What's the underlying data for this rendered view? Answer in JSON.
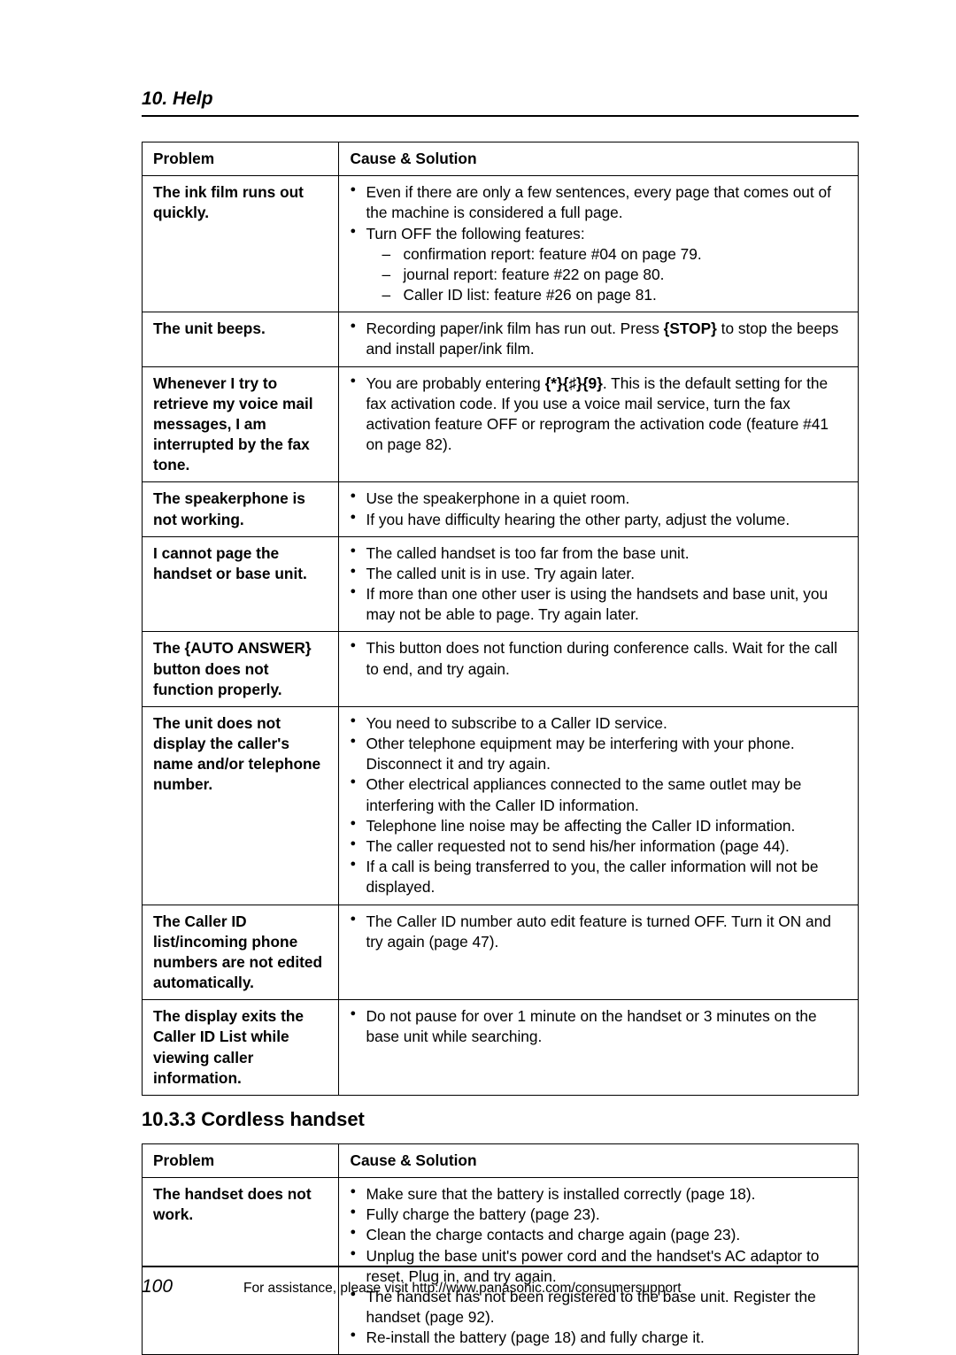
{
  "header": "10. Help",
  "table1": {
    "columns": [
      "Problem",
      "Cause & Solution"
    ],
    "rows": [
      {
        "problem": "The ink film runs out quickly.",
        "bullets": [
          "Even if there are only a few sentences, every page that comes out of the machine is considered a full page.",
          "Turn OFF the following features:"
        ],
        "dashes": [
          "confirmation report: feature #04 on page 79.",
          "journal report: feature #22 on page 80.",
          "Caller ID list: feature #26 on page 81."
        ]
      },
      {
        "problem": "The unit beeps.",
        "bullets_html": [
          "Recording paper/ink film has run out. Press <span class=\"btn\">{STOP}</span> to stop the beeps and install paper/ink film."
        ]
      },
      {
        "problem": "Whenever I try to retrieve my voice mail messages, I am interrupted by the fax tone.",
        "bullets_html": [
          "You are probably entering <span class=\"btn\">{*}{♯}{9}</span>. This is the default setting for the fax activation code. If you use a voice mail service, turn the fax activation feature OFF or reprogram the activation code (feature #41 on page 82)."
        ]
      },
      {
        "problem": "The speakerphone is not working.",
        "bullets": [
          "Use the speakerphone in a quiet room.",
          "If you have difficulty hearing the other party, adjust the volume."
        ]
      },
      {
        "problem": "I cannot page the handset or base unit.",
        "bullets": [
          "The called handset is too far from the base unit.",
          "The called unit is in use. Try again later.",
          "If more than one other user is using the handsets and base unit, you may not be able to page. Try again later."
        ]
      },
      {
        "problem_html": "The <span class=\"btn\">{AUTO ANSWER}</span> button does not function properly.",
        "bullets": [
          "This button does not function during conference calls. Wait for the call to end, and try again."
        ]
      },
      {
        "problem": "The unit does not display the caller's name and/or telephone number.",
        "bullets": [
          "You need to subscribe to a Caller ID service.",
          "Other telephone equipment may be interfering with your phone. Disconnect it and try again.",
          "Other electrical appliances connected to the same outlet may be interfering with the Caller ID information.",
          "Telephone line noise may be affecting the Caller ID information.",
          "The caller requested not to send his/her information (page 44).",
          "If a call is being transferred to you, the caller information will not be displayed."
        ]
      },
      {
        "problem": "The Caller ID list/incoming phone numbers are not edited automatically.",
        "bullets": [
          "The Caller ID number auto edit feature is turned OFF. Turn it ON and try again (page 47)."
        ]
      },
      {
        "problem": "The display exits the Caller ID List while viewing caller information.",
        "bullets": [
          "Do not pause for over 1 minute on the handset or 3 minutes on the base unit while searching."
        ]
      }
    ]
  },
  "subsection": "10.3.3 Cordless handset",
  "table2": {
    "columns": [
      "Problem",
      "Cause & Solution"
    ],
    "rows": [
      {
        "problem": "The handset does not work.",
        "bullets": [
          "Make sure that the battery is installed correctly (page 18).",
          "Fully charge the battery (page 23).",
          "Clean the charge contacts and charge again (page 23).",
          "Unplug the base unit's power cord and the handset's AC adaptor to reset. Plug in, and try again.",
          "The handset has not been registered to the base unit. Register the handset (page 92).",
          "Re-install the battery (page 18) and fully charge it."
        ]
      }
    ]
  },
  "footer": {
    "page": "100",
    "text": "For assistance, please visit http://www.panasonic.com/consumersupport"
  }
}
